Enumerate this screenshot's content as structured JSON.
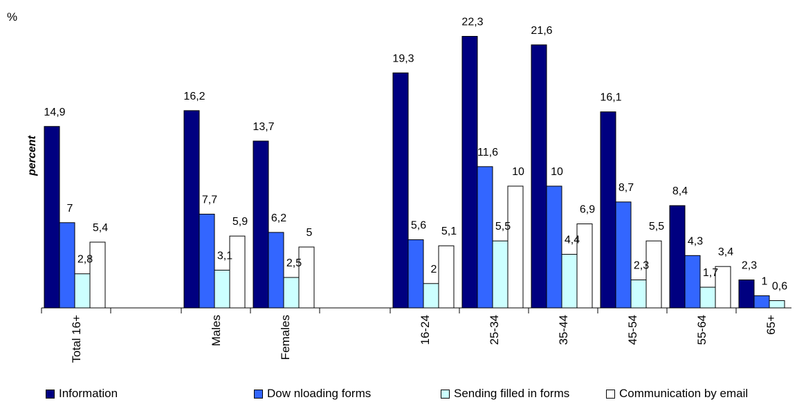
{
  "chart_data": {
    "type": "bar",
    "unit_label": "%",
    "ylabel": "percent",
    "xlabel": "",
    "title": "",
    "ylim": [
      0,
      24
    ],
    "grid": false,
    "legend_position": "bottom",
    "categories": [
      "Total 16+",
      "Males",
      "Females",
      "16-24",
      "25-34",
      "35-44",
      "45-54",
      "55-64",
      "65+"
    ],
    "series": [
      {
        "name": "Information",
        "color": "#000080",
        "values": [
          14.9,
          16.2,
          13.7,
          19.3,
          22.3,
          21.6,
          16.1,
          8.4,
          2.3
        ],
        "labels": [
          "14,9",
          "16,2",
          "13,7",
          "19,3",
          "22,3",
          "21,6",
          "16,1",
          "8,4",
          "2,3"
        ]
      },
      {
        "name": "Dow nloading forms",
        "color": "#3366FF",
        "values": [
          7,
          7.7,
          6.2,
          5.6,
          11.6,
          10,
          8.7,
          4.3,
          1
        ],
        "labels": [
          "7",
          "7,7",
          "6,2",
          "5,6",
          "11,6",
          "10",
          "8,7",
          "4,3",
          "1"
        ]
      },
      {
        "name": "Sending filled in forms",
        "color": "#CCFFFF",
        "values": [
          2.8,
          3.1,
          2.5,
          2,
          5.5,
          4.4,
          2.3,
          1.7,
          0.6
        ],
        "labels": [
          "2,8",
          "3,1",
          "2,5",
          "2",
          "5,5",
          "4,4",
          "2,3",
          "1,7",
          "0,6"
        ]
      },
      {
        "name": "Communication by email",
        "color": "#FFFFFF",
        "values": [
          5.4,
          5.9,
          5,
          5.1,
          10,
          6.9,
          5.5,
          3.4,
          null
        ],
        "labels": [
          "5,4",
          "5,9",
          "5",
          "5,1",
          "10",
          "6,9",
          "5,5",
          "3,4",
          ""
        ]
      }
    ]
  }
}
